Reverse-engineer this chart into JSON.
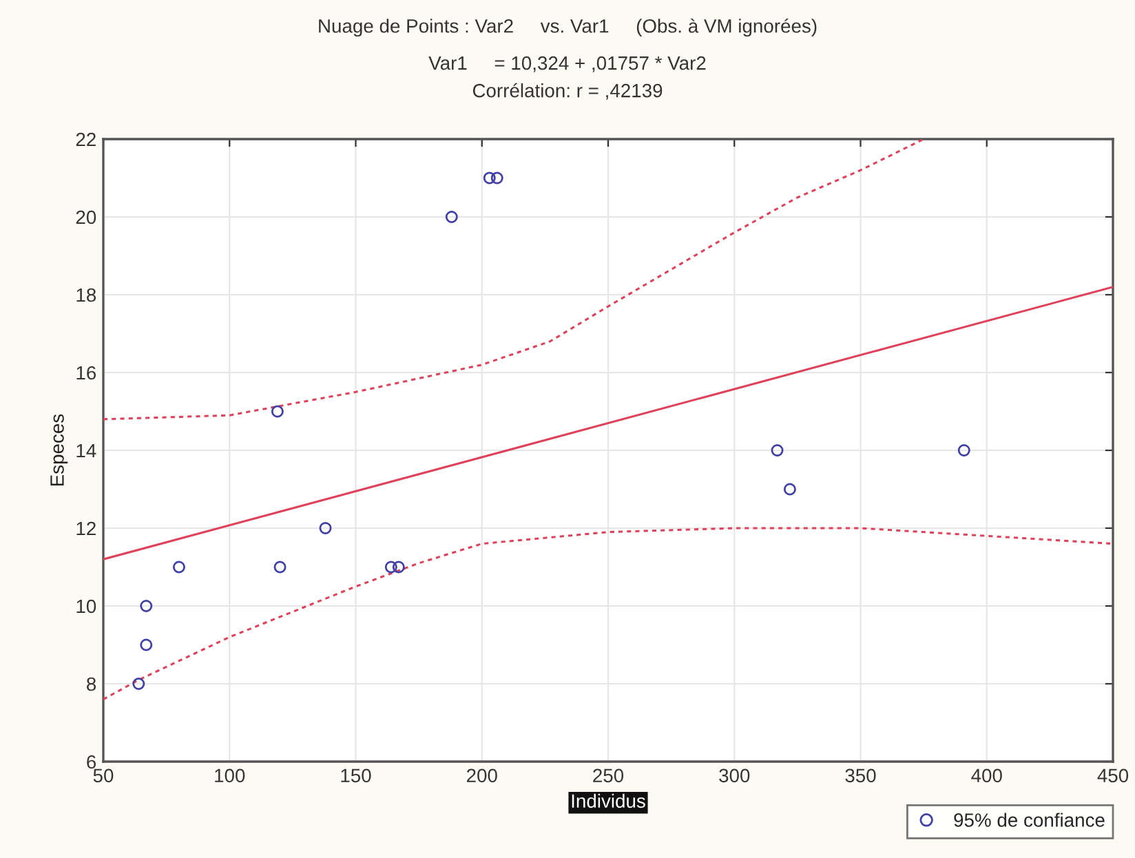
{
  "chart_data": {
    "type": "scatter",
    "title": "Nuage de Points : Var2     vs. Var1     (Obs. à VM ignorées)",
    "subtitle": "Var1     = 10,324 + ,01757 * Var2\nCorrélation: r = ,42139",
    "xlabel": "Individus",
    "ylabel": "Especes",
    "xlim": [
      50,
      450
    ],
    "xticks": [
      50,
      100,
      150,
      200,
      250,
      300,
      350,
      400,
      450
    ],
    "ylim": [
      6,
      22
    ],
    "yticks": [
      6,
      8,
      10,
      12,
      14,
      16,
      18,
      20,
      22
    ],
    "grid": true,
    "legend": "bottom right",
    "series": [
      {
        "name": "95% de confiance",
        "marker": "circle",
        "color": "#4040a8",
        "x": [
          64,
          67,
          67,
          80,
          119,
          120,
          138,
          164,
          167,
          188,
          203,
          206,
          317,
          322,
          391
        ],
        "values": [
          8,
          9,
          10,
          11,
          15,
          11,
          12,
          11,
          11,
          20,
          21,
          21,
          14,
          13,
          14
        ]
      },
      {
        "type": "line",
        "color": "#e0405a",
        "line_style": "solid",
        "x": [
          50,
          450
        ],
        "values": [
          11.2,
          18.2
        ]
      },
      {
        "type": "line",
        "color": "#e0405a",
        "line_style": "dotted",
        "x": [
          50,
          100,
          150,
          200,
          227,
          250,
          300,
          325,
          350,
          375
        ],
        "values": [
          14.8,
          14.9,
          15.5,
          16.2,
          16.8,
          17.7,
          19.6,
          20.5,
          21.2,
          22
        ]
      },
      {
        "type": "line",
        "color": "#e0405a",
        "line_style": "dotted",
        "x": [
          50,
          64,
          100,
          150,
          175,
          200,
          250,
          300,
          350,
          400,
          450
        ],
        "values": [
          7.6,
          8.1,
          9.2,
          10.5,
          11.1,
          11.6,
          11.9,
          12.0,
          12.0,
          11.8,
          11.6
        ]
      }
    ]
  }
}
